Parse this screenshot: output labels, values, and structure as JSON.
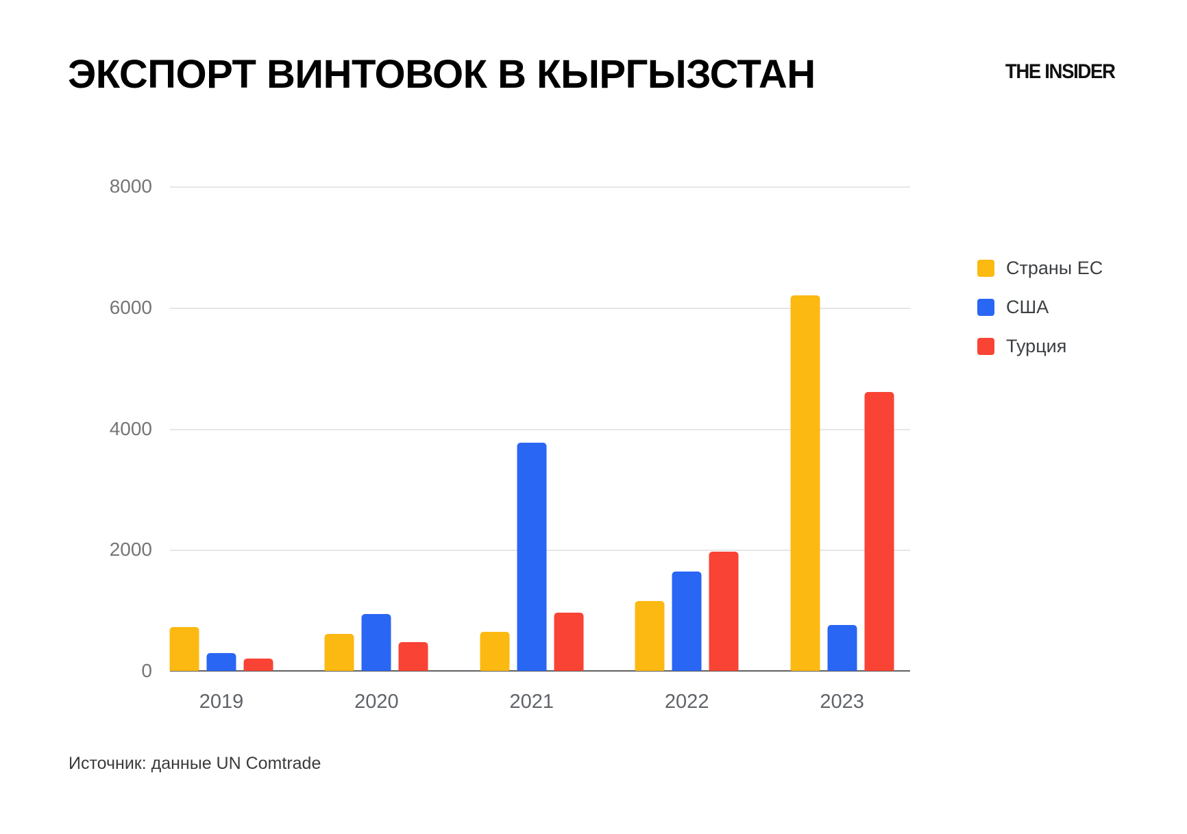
{
  "header": {
    "title": "ЭКСПОРТ ВИНТОВОК В КЫРГЫЗСТАН",
    "brand": "THE INSIDER"
  },
  "footer": {
    "source": "Источник: данные UN Comtrade"
  },
  "colors": {
    "grid": "#e6e6e6",
    "axis": "#616161",
    "ytick_label": "#757575",
    "xtick_label": "#5f6368",
    "legend_label": "#3c4043",
    "title_text": "#000000"
  },
  "chart_data": {
    "type": "bar",
    "title": "ЭКСПОРТ ВИНТОВОК В КЫРГЫЗСТАН",
    "xlabel": "",
    "ylabel": "",
    "categories": [
      "2019",
      "2020",
      "2021",
      "2022",
      "2023"
    ],
    "series": [
      {
        "name": "Страны ЕС",
        "color": "#FCB912",
        "values": [
          720,
          610,
          650,
          1160,
          6200
        ]
      },
      {
        "name": "США",
        "color": "#2A66F4",
        "values": [
          290,
          945,
          3770,
          1640,
          755
        ]
      },
      {
        "name": "Турция",
        "color": "#F94334",
        "values": [
          205,
          470,
          965,
          1970,
          4600
        ]
      }
    ],
    "ylim": [
      0,
      8000
    ],
    "yticks": [
      0,
      2000,
      4000,
      6000,
      8000
    ],
    "grid": "horizontal",
    "legend_position": "right",
    "source": "Источник: данные UN Comtrade"
  }
}
